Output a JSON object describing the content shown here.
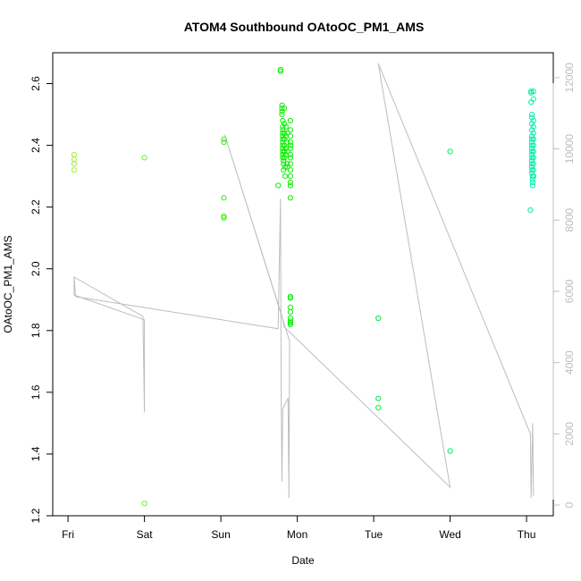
{
  "chart_data": {
    "type": "scatter",
    "title": "ATOM4 Southbound OAtoOC_PM1_AMS",
    "xlabel": "Date",
    "ylabel": "OAtoOC_PM1_AMS",
    "x_ticks": [
      "Fri",
      "Sat",
      "Sun",
      "Mon",
      "Tue",
      "Wed",
      "Thu"
    ],
    "x_unit": "days from Friday 00:00",
    "xlim": [
      -0.2,
      6.35
    ],
    "ylim": [
      1.2,
      2.7
    ],
    "y_ticks": [
      1.2,
      1.4,
      1.6,
      1.8,
      2.0,
      2.2,
      2.4,
      2.6
    ],
    "y2lim": [
      -300,
      12700
    ],
    "y2_ticks": [
      0,
      2000,
      4000,
      6000,
      8000,
      10000,
      12000
    ],
    "grid": false,
    "series": [
      {
        "kind": "points",
        "colors": {
          "start": "#b3ee3a",
          "mid": "#00ee00",
          "end": "#00eebb"
        },
        "points": [
          {
            "x": 0.08,
            "y": 2.37
          },
          {
            "x": 0.08,
            "y": 2.355
          },
          {
            "x": 0.08,
            "y": 2.34
          },
          {
            "x": 0.08,
            "y": 2.32
          },
          {
            "x": 1.0,
            "y": 2.36
          },
          {
            "x": 1.0,
            "y": 1.24
          },
          {
            "x": 2.04,
            "y": 2.42
          },
          {
            "x": 2.04,
            "y": 2.41
          },
          {
            "x": 2.04,
            "y": 2.23
          },
          {
            "x": 2.04,
            "y": 2.17
          },
          {
            "x": 2.04,
            "y": 2.165
          },
          {
            "x": 2.75,
            "y": 2.27
          },
          {
            "x": 2.78,
            "y": 2.645
          },
          {
            "x": 2.78,
            "y": 2.64
          },
          {
            "x": 2.8,
            "y": 2.53
          },
          {
            "x": 2.8,
            "y": 2.52
          },
          {
            "x": 2.8,
            "y": 2.51
          },
          {
            "x": 2.8,
            "y": 2.5
          },
          {
            "x": 2.81,
            "y": 2.48
          },
          {
            "x": 2.81,
            "y": 2.46
          },
          {
            "x": 2.81,
            "y": 2.45
          },
          {
            "x": 2.81,
            "y": 2.44
          },
          {
            "x": 2.81,
            "y": 2.43
          },
          {
            "x": 2.81,
            "y": 2.42
          },
          {
            "x": 2.81,
            "y": 2.41
          },
          {
            "x": 2.81,
            "y": 2.4
          },
          {
            "x": 2.81,
            "y": 2.39
          },
          {
            "x": 2.81,
            "y": 2.38
          },
          {
            "x": 2.81,
            "y": 2.37
          },
          {
            "x": 2.81,
            "y": 2.36
          },
          {
            "x": 2.82,
            "y": 2.35
          },
          {
            "x": 2.82,
            "y": 2.34
          },
          {
            "x": 2.82,
            "y": 2.32
          },
          {
            "x": 2.83,
            "y": 2.52
          },
          {
            "x": 2.83,
            "y": 2.47
          },
          {
            "x": 2.83,
            "y": 2.44
          },
          {
            "x": 2.83,
            "y": 2.42
          },
          {
            "x": 2.83,
            "y": 2.4
          },
          {
            "x": 2.83,
            "y": 2.38
          },
          {
            "x": 2.83,
            "y": 2.36
          },
          {
            "x": 2.84,
            "y": 2.33
          },
          {
            "x": 2.84,
            "y": 2.3
          },
          {
            "x": 2.85,
            "y": 2.46
          },
          {
            "x": 2.85,
            "y": 2.43
          },
          {
            "x": 2.85,
            "y": 2.39
          },
          {
            "x": 2.85,
            "y": 2.37
          },
          {
            "x": 2.87,
            "y": 2.44
          },
          {
            "x": 2.87,
            "y": 2.41
          },
          {
            "x": 2.87,
            "y": 2.38
          },
          {
            "x": 2.87,
            "y": 2.34
          },
          {
            "x": 2.87,
            "y": 2.33
          },
          {
            "x": 2.91,
            "y": 2.48
          },
          {
            "x": 2.91,
            "y": 2.45
          },
          {
            "x": 2.91,
            "y": 2.43
          },
          {
            "x": 2.91,
            "y": 2.41
          },
          {
            "x": 2.91,
            "y": 2.4
          },
          {
            "x": 2.91,
            "y": 2.39
          },
          {
            "x": 2.91,
            "y": 2.37
          },
          {
            "x": 2.91,
            "y": 2.36
          },
          {
            "x": 2.91,
            "y": 2.34
          },
          {
            "x": 2.91,
            "y": 2.32
          },
          {
            "x": 2.91,
            "y": 2.3
          },
          {
            "x": 2.91,
            "y": 2.28
          },
          {
            "x": 2.91,
            "y": 2.27
          },
          {
            "x": 2.91,
            "y": 2.23
          },
          {
            "x": 2.91,
            "y": 1.91
          },
          {
            "x": 2.91,
            "y": 1.905
          },
          {
            "x": 2.91,
            "y": 1.875
          },
          {
            "x": 2.91,
            "y": 1.86
          },
          {
            "x": 2.91,
            "y": 1.84
          },
          {
            "x": 2.91,
            "y": 1.83
          },
          {
            "x": 2.91,
            "y": 1.825
          },
          {
            "x": 2.91,
            "y": 1.82
          },
          {
            "x": 4.06,
            "y": 1.84
          },
          {
            "x": 4.06,
            "y": 1.58
          },
          {
            "x": 4.06,
            "y": 1.55
          },
          {
            "x": 5.0,
            "y": 2.38
          },
          {
            "x": 5.0,
            "y": 1.41
          },
          {
            "x": 6.05,
            "y": 2.19
          },
          {
            "x": 6.06,
            "y": 2.575
          },
          {
            "x": 6.06,
            "y": 2.57
          },
          {
            "x": 6.06,
            "y": 2.54
          },
          {
            "x": 6.07,
            "y": 2.5
          },
          {
            "x": 6.07,
            "y": 2.49
          },
          {
            "x": 6.07,
            "y": 2.47
          },
          {
            "x": 6.07,
            "y": 2.45
          },
          {
            "x": 6.07,
            "y": 2.43
          },
          {
            "x": 6.07,
            "y": 2.42
          },
          {
            "x": 6.07,
            "y": 2.41
          },
          {
            "x": 6.07,
            "y": 2.4
          },
          {
            "x": 6.07,
            "y": 2.39
          },
          {
            "x": 6.07,
            "y": 2.38
          },
          {
            "x": 6.07,
            "y": 2.37
          },
          {
            "x": 6.07,
            "y": 2.36
          },
          {
            "x": 6.07,
            "y": 2.35
          },
          {
            "x": 6.07,
            "y": 2.34
          },
          {
            "x": 6.07,
            "y": 2.33
          },
          {
            "x": 6.07,
            "y": 2.32
          },
          {
            "x": 6.07,
            "y": 2.31
          },
          {
            "x": 6.08,
            "y": 2.3
          },
          {
            "x": 6.08,
            "y": 2.29
          },
          {
            "x": 6.08,
            "y": 2.28
          },
          {
            "x": 6.08,
            "y": 2.27
          },
          {
            "x": 6.09,
            "y": 2.575
          },
          {
            "x": 6.09,
            "y": 2.55
          },
          {
            "x": 6.09,
            "y": 2.48
          },
          {
            "x": 6.09,
            "y": 2.46
          },
          {
            "x": 6.09,
            "y": 2.44
          },
          {
            "x": 6.09,
            "y": 2.42
          },
          {
            "x": 6.09,
            "y": 2.4
          },
          {
            "x": 6.09,
            "y": 2.38
          },
          {
            "x": 6.09,
            "y": 2.36
          },
          {
            "x": 6.09,
            "y": 2.34
          },
          {
            "x": 6.09,
            "y": 2.32
          },
          {
            "x": 6.09,
            "y": 2.3
          }
        ]
      },
      {
        "kind": "line",
        "axis": "right",
        "points": [
          {
            "x": 0.08,
            "y": 6400
          },
          {
            "x": 0.08,
            "y": 5900
          },
          {
            "x": 1.0,
            "y": 5200
          },
          {
            "x": 1.0,
            "y": 2600
          },
          {
            "x": 0.98,
            "y": 5300
          },
          {
            "x": 0.08,
            "y": 6400
          },
          {
            "x": 0.1,
            "y": 5850
          },
          {
            "x": 2.75,
            "y": 4950
          },
          {
            "x": 2.78,
            "y": 8600
          },
          {
            "x": 2.79,
            "y": 3000
          },
          {
            "x": 2.8,
            "y": 650
          },
          {
            "x": 2.81,
            "y": 2700
          },
          {
            "x": 2.88,
            "y": 3000
          },
          {
            "x": 2.89,
            "y": 200
          },
          {
            "x": 2.9,
            "y": 4600
          },
          {
            "x": 2.05,
            "y": 10400
          },
          {
            "x": 2.8,
            "y": 5300
          },
          {
            "x": 2.83,
            "y": 5000
          },
          {
            "x": 5.0,
            "y": 500
          },
          {
            "x": 4.06,
            "y": 12400
          },
          {
            "x": 6.05,
            "y": 2000
          },
          {
            "x": 6.06,
            "y": 200
          },
          {
            "x": 6.08,
            "y": 2300
          },
          {
            "x": 6.09,
            "y": 250
          }
        ]
      }
    ]
  }
}
